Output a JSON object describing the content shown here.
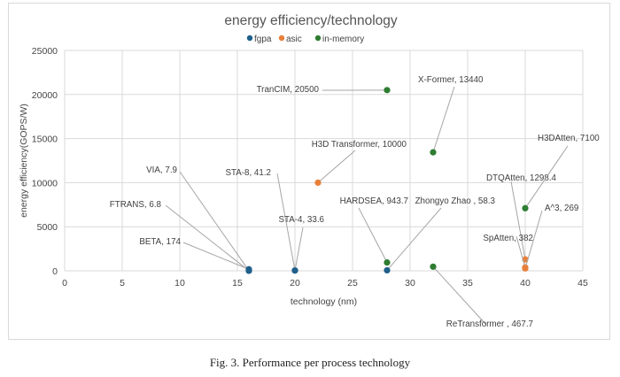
{
  "chart_data": {
    "type": "scatter",
    "title": "energy efficiency/technology",
    "xlabel": "technology (nm)",
    "ylabel": "energy efficiency(GOPS/W)",
    "xlim": [
      0,
      45
    ],
    "ylim": [
      0,
      25000
    ],
    "xticks": [
      0,
      5,
      10,
      15,
      20,
      25,
      30,
      35,
      40,
      45
    ],
    "yticks": [
      0,
      5000,
      10000,
      15000,
      20000,
      25000
    ],
    "grid": true,
    "legend_position": "top",
    "series": [
      {
        "name": "fgpa",
        "color": "#1f5f8b",
        "points": [
          {
            "x": 16,
            "y": 7.9,
            "label": "VIA, 7.9"
          },
          {
            "x": 16,
            "y": 6.8,
            "label": "FTRANS, 6.8"
          },
          {
            "x": 16,
            "y": 174,
            "label": "BETA, 174"
          },
          {
            "x": 20,
            "y": 41.2,
            "label": "STA-8, 41.2"
          },
          {
            "x": 20,
            "y": 33.6,
            "label": "STA-4, 33.6"
          },
          {
            "x": 28,
            "y": 58.3,
            "label": "Zhongyo Zhao , 58.3"
          }
        ]
      },
      {
        "name": "asic",
        "color": "#e8803a",
        "points": [
          {
            "x": 22,
            "y": 10000,
            "label": "H3D Transformer, 10000"
          },
          {
            "x": 40,
            "y": 1298.4,
            "label": "DTQAtten, 1298.4"
          },
          {
            "x": 40,
            "y": 382,
            "label": "SpAtten, 382"
          },
          {
            "x": 40,
            "y": 269,
            "label": "A^3, 269"
          }
        ]
      },
      {
        "name": "in-memory",
        "color": "#2e7d32",
        "points": [
          {
            "x": 28,
            "y": 20500,
            "label": "TranCIM, 20500"
          },
          {
            "x": 32,
            "y": 13440,
            "label": "X-Former, 13440"
          },
          {
            "x": 28,
            "y": 943.7,
            "label": "HARDSEA, 943.7"
          },
          {
            "x": 32,
            "y": 467.7,
            "label": "ReTransformer , 467.7"
          },
          {
            "x": 40,
            "y": 7100,
            "label": "H3DAtten, 7100"
          }
        ]
      }
    ]
  },
  "caption": "Fig. 3.   Performance per process technology"
}
